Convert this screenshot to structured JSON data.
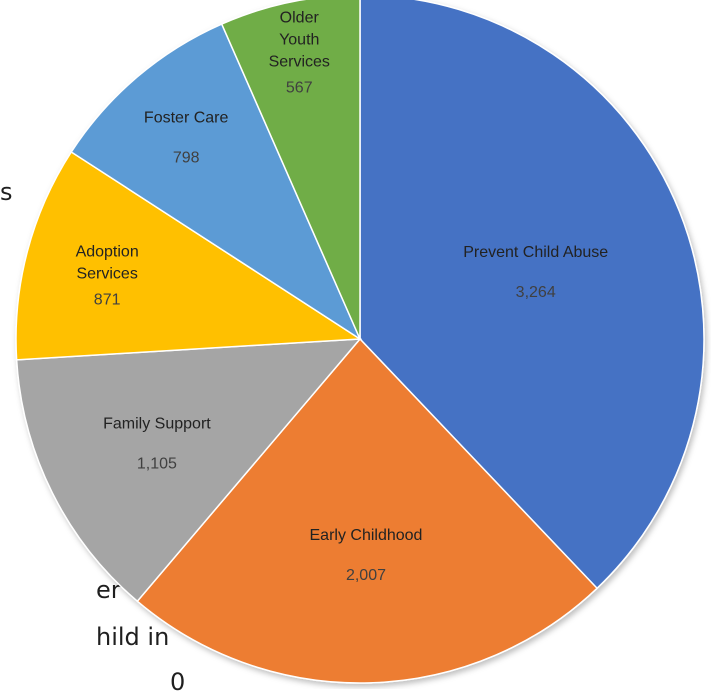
{
  "chart_data": {
    "type": "pie",
    "title": "",
    "slices": [
      {
        "label": "Prevent Child Abuse",
        "value": 3264,
        "display": "3,264",
        "color": "#4472C4"
      },
      {
        "label": "Early Childhood",
        "value": 2007,
        "display": "2,007",
        "color": "#ED7D31"
      },
      {
        "label": "Family Support",
        "value": 1105,
        "display": "1,105",
        "color": "#A5A5A5"
      },
      {
        "label": "Adoption Services",
        "value": 871,
        "display": "871",
        "color": "#FFC000"
      },
      {
        "label": "Foster Care",
        "value": 798,
        "display": "798",
        "color": "#5B9BD5"
      },
      {
        "label": "Older Youth Services",
        "value": 567,
        "display": "567",
        "color": "#70AD47"
      }
    ]
  },
  "background_text": {
    "fragment_1": "s",
    "fragment_2": "er",
    "fragment_3": "hild in",
    "fragment_4": "0"
  }
}
